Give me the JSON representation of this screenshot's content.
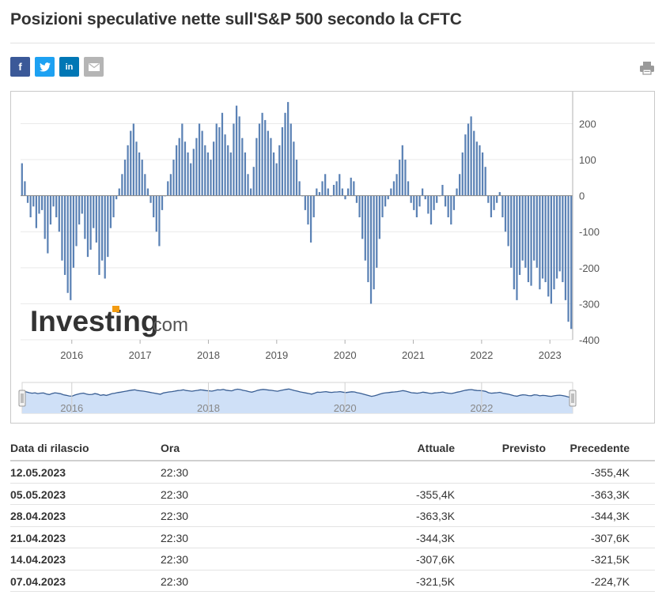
{
  "title": "Posizioni speculative nette sull'S&P 500 secondo la CFTC",
  "share": {
    "facebook": "f",
    "twitter": "twitter-bird-icon",
    "linkedin": "in",
    "email": "envelope-icon",
    "print": "printer-icon"
  },
  "watermark": {
    "brand": "Investing",
    "suffix": ".com"
  },
  "colors": {
    "bar": "#5b82b5",
    "navigator_fill": "#cfe0f7",
    "navigator_line": "#3a5f94",
    "grid": "#e9e9e9"
  },
  "chart_data": {
    "type": "bar",
    "xlabel": "",
    "ylabel": "",
    "ylim": [
      -400,
      280
    ],
    "yticks": [
      "-400",
      "-300",
      "-200",
      "-100",
      "0",
      "100",
      "200"
    ],
    "xticks": [
      "2016",
      "2017",
      "2018",
      "2019",
      "2020",
      "2021",
      "2022",
      "2023"
    ],
    "navigator_ticks": [
      "2016",
      "2018",
      "2020",
      "2022"
    ],
    "x_start": "2015-04",
    "x_end": "2023-05",
    "series": [
      {
        "values": [
          90,
          40,
          -20,
          -60,
          -30,
          -90,
          -50,
          -40,
          -120,
          -160,
          -80,
          -30,
          -60,
          -100,
          -180,
          -220,
          -270,
          -290,
          -200,
          -140,
          -80,
          -50,
          -120,
          -170,
          -150,
          -90,
          -130,
          -220,
          -180,
          -230,
          -170,
          -90,
          -60,
          -10,
          20,
          60,
          100,
          140,
          180,
          200,
          150,
          120,
          100,
          60,
          20,
          -20,
          -60,
          -100,
          -140,
          -40,
          0,
          40,
          60,
          100,
          140,
          160,
          200,
          150,
          120,
          90,
          130,
          160,
          200,
          180,
          140,
          120,
          100,
          150,
          200,
          190,
          230,
          170,
          140,
          120,
          200,
          250,
          220,
          160,
          120,
          60,
          20,
          80,
          160,
          200,
          230,
          210,
          180,
          160,
          120,
          90,
          140,
          190,
          230,
          260,
          200,
          150,
          100,
          40,
          0,
          -40,
          -80,
          -130,
          -60,
          20,
          10,
          40,
          60,
          20,
          0,
          30,
          40,
          60,
          20,
          -10,
          20,
          50,
          40,
          -20,
          -60,
          -120,
          -180,
          -240,
          -300,
          -260,
          -200,
          -120,
          -60,
          -30,
          -10,
          20,
          40,
          60,
          100,
          140,
          100,
          40,
          -20,
          -40,
          -60,
          -30,
          20,
          -10,
          -50,
          -80,
          -40,
          -20,
          0,
          30,
          -30,
          -60,
          -80,
          -40,
          20,
          60,
          120,
          170,
          200,
          220,
          180,
          150,
          140,
          120,
          80,
          -20,
          -60,
          -40,
          -20,
          10,
          -60,
          -100,
          -140,
          -200,
          -260,
          -290,
          -220,
          -180,
          -200,
          -240,
          -250,
          -180,
          -200,
          -260,
          -230,
          -240,
          -280,
          -300,
          -260,
          -230,
          -210,
          -240,
          -290,
          -350,
          -370
        ],
        "recent_points": [
          {
            "date": "07.04.2023",
            "value": -321.5
          },
          {
            "date": "14.04.2023",
            "value": -307.6
          },
          {
            "date": "21.04.2023",
            "value": -344.3
          },
          {
            "date": "28.04.2023",
            "value": -363.3
          },
          {
            "date": "05.05.2023",
            "value": -355.4
          }
        ]
      }
    ]
  },
  "table": {
    "headers": {
      "date": "Data di rilascio",
      "time": "Ora",
      "actual": "Attuale",
      "forecast": "Previsto",
      "previous": "Precedente"
    },
    "rows": [
      {
        "date": "12.05.2023",
        "time": "22:30",
        "actual": "",
        "forecast": "",
        "previous": "-355,4K"
      },
      {
        "date": "05.05.2023",
        "time": "22:30",
        "actual": "-355,4K",
        "forecast": "",
        "previous": "-363,3K"
      },
      {
        "date": "28.04.2023",
        "time": "22:30",
        "actual": "-363,3K",
        "forecast": "",
        "previous": "-344,3K"
      },
      {
        "date": "21.04.2023",
        "time": "22:30",
        "actual": "-344,3K",
        "forecast": "",
        "previous": "-307,6K"
      },
      {
        "date": "14.04.2023",
        "time": "22:30",
        "actual": "-307,6K",
        "forecast": "",
        "previous": "-321,5K"
      },
      {
        "date": "07.04.2023",
        "time": "22:30",
        "actual": "-321,5K",
        "forecast": "",
        "previous": "-224,7K"
      }
    ]
  }
}
